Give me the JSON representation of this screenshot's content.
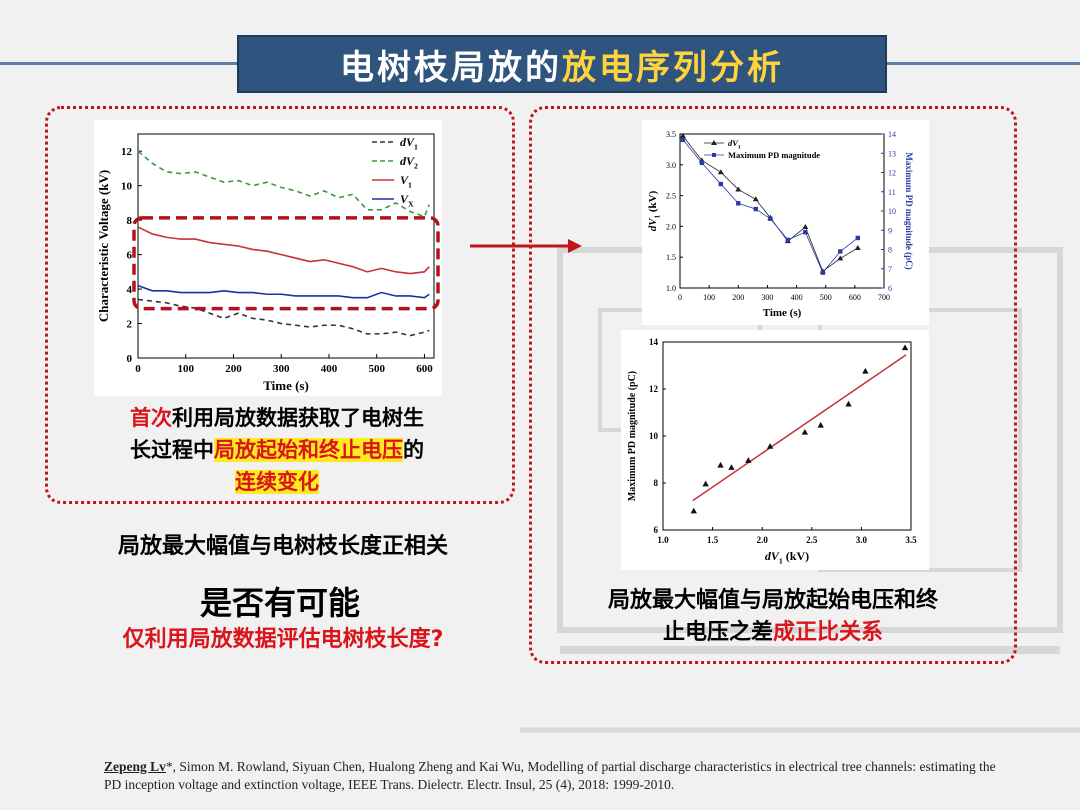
{
  "title": {
    "part1": "电树枝局放的",
    "part2": "放电序列分析"
  },
  "colors": {
    "title_bg": "#2f557f",
    "title_highlight": "#ffd33b",
    "accent_red": "#d9141b",
    "highlight_yellow": "#ffea1f"
  },
  "left_text": {
    "l1a": "首次",
    "l1b": "利用局放数据获取了电树生",
    "l2a": "长过程中",
    "l2b": "局放起始和终止电压",
    "l2c": "的",
    "l3": "连续变化"
  },
  "bottom_left": {
    "line1": "局放最大幅值与电树枝长度正相关",
    "line2": "是否有可能",
    "line3": "仅利用局放数据评估电树枝长度?"
  },
  "bottom_right": {
    "line1": "局放最大幅值与局放起始电压和终",
    "line2a": "止电压之差",
    "line2b": "成正比关系"
  },
  "reference": {
    "author": "Zepeng Lv",
    "rest": "*, Simon M. Rowland, Siyuan Chen, Hualong Zheng and Kai Wu, Modelling of partial discharge characteristics in electrical tree channels: estimating the PD inception voltage and extinction voltage, IEEE Trans. Dielectr. Electr. Insul, 25 (4), 2018: 1999-2010."
  },
  "chart_data": [
    {
      "type": "line",
      "xlabel": "Time (s)",
      "ylabel": "Characteristic Voltage (kV)",
      "xlim": [
        0,
        620
      ],
      "ylim": [
        0,
        13
      ],
      "xticks": [
        "0",
        "100",
        "200",
        "300",
        "400",
        "500",
        "600"
      ],
      "yticks": [
        "0",
        "2",
        "4",
        "6",
        "8",
        "10",
        "12"
      ],
      "legend_position": "top-right",
      "series": [
        {
          "name": "dV1",
          "color": "#333333",
          "style": "dashed",
          "x": [
            0,
            30,
            60,
            90,
            120,
            150,
            180,
            210,
            240,
            270,
            300,
            330,
            360,
            390,
            420,
            450,
            480,
            510,
            540,
            570,
            600,
            610
          ],
          "y": [
            3.4,
            3.3,
            3.2,
            3.0,
            2.9,
            2.6,
            2.3,
            2.6,
            2.3,
            2.2,
            2.0,
            1.9,
            1.8,
            1.9,
            1.9,
            1.7,
            1.4,
            1.4,
            1.5,
            1.3,
            1.5,
            1.6
          ]
        },
        {
          "name": "dV2",
          "color": "#3a9a3a",
          "style": "dashed",
          "x": [
            0,
            30,
            60,
            90,
            120,
            150,
            180,
            210,
            240,
            270,
            300,
            330,
            360,
            390,
            420,
            450,
            480,
            510,
            540,
            570,
            600,
            610
          ],
          "y": [
            12.0,
            11.3,
            10.8,
            10.7,
            10.8,
            10.5,
            10.2,
            10.3,
            10.0,
            10.2,
            9.9,
            9.7,
            9.4,
            9.7,
            9.3,
            9.5,
            8.6,
            8.6,
            9.0,
            8.5,
            8.2,
            8.9
          ]
        },
        {
          "name": "V1",
          "color": "#c8313a",
          "style": "solid",
          "x": [
            0,
            30,
            60,
            90,
            120,
            150,
            180,
            210,
            240,
            270,
            300,
            330,
            360,
            390,
            420,
            450,
            480,
            510,
            540,
            570,
            600,
            610
          ],
          "y": [
            7.6,
            7.2,
            7.0,
            6.9,
            6.9,
            6.7,
            6.6,
            6.5,
            6.3,
            6.2,
            6.0,
            5.8,
            5.6,
            5.7,
            5.5,
            5.3,
            5.0,
            5.2,
            5.0,
            4.9,
            5.0,
            5.3
          ]
        },
        {
          "name": "VX",
          "color": "#1d2fa8",
          "style": "solid",
          "x": [
            0,
            30,
            60,
            90,
            120,
            150,
            180,
            210,
            240,
            270,
            300,
            330,
            360,
            390,
            420,
            450,
            480,
            510,
            540,
            570,
            600,
            610
          ],
          "y": [
            4.2,
            3.9,
            3.9,
            3.8,
            3.8,
            3.8,
            3.9,
            3.8,
            3.8,
            3.7,
            3.7,
            3.6,
            3.6,
            3.6,
            3.6,
            3.5,
            3.5,
            3.8,
            3.6,
            3.6,
            3.5,
            3.7
          ]
        }
      ],
      "legend": [
        "dV1",
        "dV2",
        "V1",
        "VX"
      ]
    },
    {
      "type": "line",
      "xlabel": "Time (s)",
      "ylabel": "dV1 (kV)",
      "y2label": "Maximum PD magnitude (pC)",
      "xlim": [
        0,
        700
      ],
      "ylim": [
        1.0,
        3.5
      ],
      "y2lim": [
        6,
        14
      ],
      "xticks": [
        "0",
        "100",
        "200",
        "300",
        "400",
        "500",
        "600",
        "700"
      ],
      "yticks": [
        "1.0",
        "1.5",
        "2.0",
        "2.5",
        "3.0",
        "3.5"
      ],
      "y2ticks": [
        "6",
        "7",
        "8",
        "9",
        "10",
        "11",
        "12",
        "13",
        "14"
      ],
      "legend_position": "top-left",
      "legend": [
        "dV1",
        "Maximum PD magnitude"
      ],
      "series": [
        {
          "name": "dV1",
          "color": "#222222",
          "marker": "triangle",
          "axis": "left",
          "x": [
            10,
            75,
            140,
            200,
            260,
            310,
            370,
            430,
            490,
            550,
            610
          ],
          "y": [
            3.47,
            3.07,
            2.88,
            2.6,
            2.44,
            2.14,
            1.76,
            1.99,
            1.27,
            1.48,
            1.65
          ]
        },
        {
          "name": "Maximum PD magnitude",
          "color": "#2b3aa8",
          "marker": "square",
          "axis": "right",
          "x": [
            10,
            75,
            140,
            200,
            260,
            310,
            370,
            430,
            490,
            550,
            610
          ],
          "y": [
            13.7,
            12.5,
            11.4,
            10.4,
            10.1,
            9.6,
            8.5,
            8.9,
            6.8,
            7.9,
            8.6
          ]
        }
      ]
    },
    {
      "type": "scatter",
      "xlabel": "dV1 (kV)",
      "ylabel": "Maximum PD magnitude (pC)",
      "xlim": [
        1.0,
        3.5
      ],
      "ylim": [
        6,
        14
      ],
      "xticks": [
        "1.0",
        "1.5",
        "2.0",
        "2.5",
        "3.0",
        "3.5"
      ],
      "yticks": [
        "6",
        "8",
        "10",
        "12",
        "14"
      ],
      "points": {
        "x": [
          1.31,
          1.43,
          1.58,
          1.69,
          1.86,
          2.08,
          2.43,
          2.59,
          2.87,
          3.04,
          3.44
        ],
        "y": [
          6.8,
          7.95,
          8.75,
          8.65,
          8.95,
          9.55,
          10.15,
          10.45,
          11.35,
          12.75,
          13.75
        ]
      },
      "fit_line": {
        "x": [
          1.3,
          3.45
        ],
        "y": [
          7.25,
          13.45
        ],
        "color": "#c8313a"
      }
    }
  ]
}
